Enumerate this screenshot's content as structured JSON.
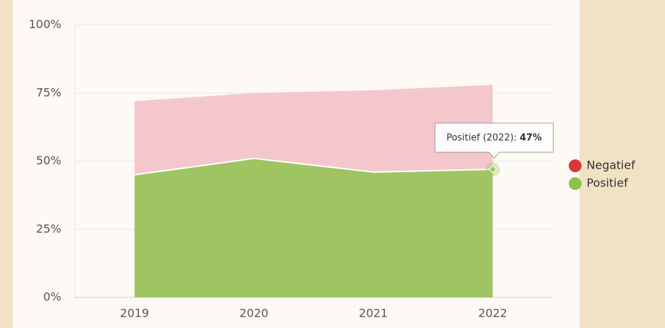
{
  "chart_data": {
    "type": "stacked_area",
    "categories": [
      "2019",
      "2020",
      "2021",
      "2022"
    ],
    "series": [
      {
        "name": "Negatief",
        "color": "#f4c7cc",
        "values": [
          27,
          24,
          30,
          31
        ]
      },
      {
        "name": "Positief",
        "color": "#9fc562",
        "values": [
          45,
          51,
          46,
          47
        ],
        "value_labels": [
          null,
          null,
          null,
          "47%"
        ]
      }
    ],
    "ylim": [
      0,
      100
    ],
    "yticks": [
      {
        "value": 0,
        "label": "0%"
      },
      {
        "value": 25,
        "label": "25%"
      },
      {
        "value": 50,
        "label": "50%"
      },
      {
        "value": 75,
        "label": "75%"
      },
      {
        "value": 100,
        "label": "100%"
      }
    ],
    "grid": true,
    "legend": "right",
    "tooltip": {
      "label": "Positief (2022):",
      "series": 1,
      "index": 3
    }
  }
}
